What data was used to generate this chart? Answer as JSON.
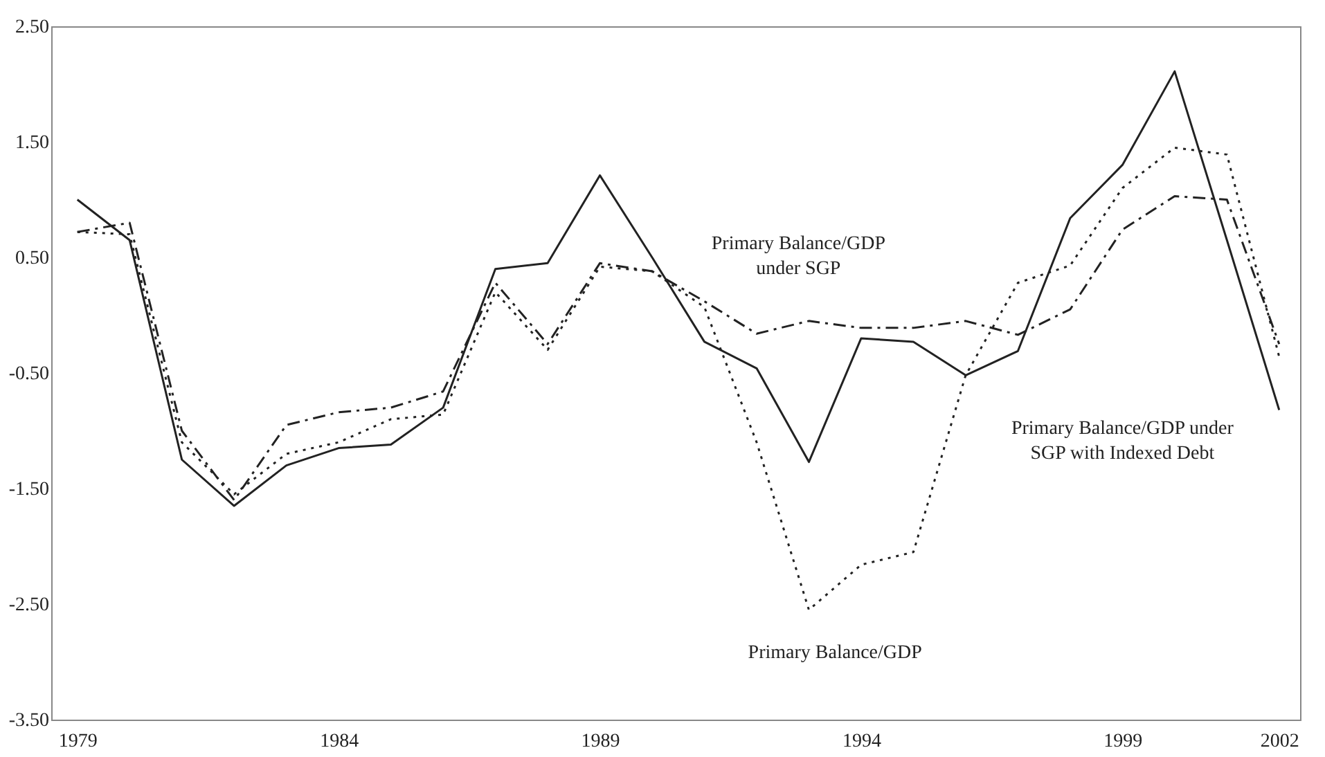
{
  "chart_data": {
    "type": "line",
    "x": [
      1979,
      1980,
      1981,
      1982,
      1983,
      1984,
      1985,
      1986,
      1987,
      1988,
      1989,
      1990,
      1991,
      1992,
      1993,
      1994,
      1995,
      1996,
      1997,
      1998,
      1999,
      2000,
      2001,
      2002
    ],
    "series": [
      {
        "name": "Primary Balance/GDP under SGP with Indexed Debt",
        "color": "#222222",
        "line_style": "solid",
        "values": [
          1.0,
          0.65,
          -1.25,
          -1.65,
          -1.3,
          -1.15,
          -1.12,
          -0.8,
          0.4,
          0.45,
          1.21,
          0.5,
          -0.23,
          -0.46,
          -1.27,
          -0.2,
          -0.23,
          -0.52,
          -0.31,
          0.84,
          1.3,
          2.11,
          0.65,
          -0.82
        ]
      },
      {
        "name": "Primary Balance/GDP under SGP",
        "color": "#222222",
        "line_style": "dashed",
        "values": [
          0.72,
          0.8,
          -1.0,
          -1.6,
          -0.95,
          -0.84,
          -0.8,
          -0.66,
          0.28,
          -0.25,
          0.45,
          0.38,
          0.12,
          -0.16,
          -0.05,
          -0.11,
          -0.11,
          -0.05,
          -0.17,
          0.05,
          0.74,
          1.03,
          1.0,
          -0.25
        ]
      },
      {
        "name": "Primary Balance/GDP",
        "color": "#222222",
        "line_style": "dotted",
        "values": [
          0.72,
          0.7,
          -1.1,
          -1.55,
          -1.2,
          -1.1,
          -0.9,
          -0.86,
          0.2,
          -0.3,
          0.42,
          0.38,
          0.07,
          -1.1,
          -2.55,
          -2.16,
          -2.05,
          -0.52,
          0.28,
          0.43,
          1.1,
          1.45,
          1.39,
          -0.36
        ]
      }
    ],
    "xlim": [
      1978.5,
      2002.4
    ],
    "xticks": [
      1979,
      1984,
      1989,
      1994,
      1999,
      2002
    ],
    "ylim": [
      -3.5,
      2.5
    ],
    "yticks": [
      {
        "value": -3.5,
        "label": "-3.50"
      },
      {
        "value": -2.5,
        "label": "-2.50"
      },
      {
        "value": -1.5,
        "label": "-1.50"
      },
      {
        "value": -0.5,
        "label": "-0.50"
      },
      {
        "value": 0.5,
        "label": "0.50"
      },
      {
        "value": 1.5,
        "label": "1.50"
      },
      {
        "value": 2.5,
        "label": "2.50"
      }
    ],
    "grid": false,
    "legend": false,
    "marker": "none"
  }
}
